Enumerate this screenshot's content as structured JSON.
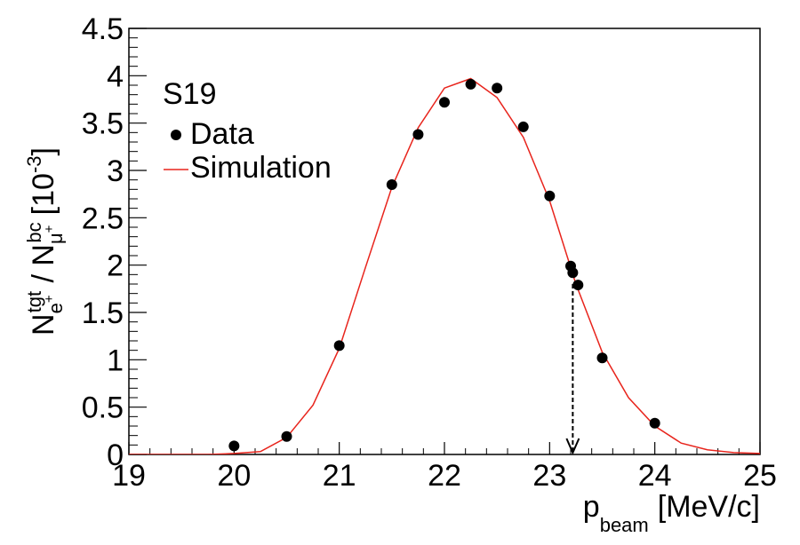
{
  "chart_data": {
    "type": "scatter",
    "title": "",
    "legend_title": "S19",
    "legend_position": "top-left",
    "xlabel": {
      "main": "p",
      "sub": "beam",
      "unit": "[MeV/c]"
    },
    "ylabel": {
      "n1": "N",
      "n1_sup": "tgt",
      "n1_sub": "e",
      "slash": " / ",
      "n2": "N",
      "n2_sup": "bc",
      "n2_sub": "μ",
      "unit_open": "[10",
      "unit_exp": "-3",
      "unit_close": "]"
    },
    "xlim": [
      19,
      25
    ],
    "ylim": [
      0,
      4.5
    ],
    "x_ticks": [
      19,
      20,
      21,
      22,
      23,
      24,
      25
    ],
    "y_ticks": [
      0,
      0.5,
      1,
      1.5,
      2,
      2.5,
      3,
      3.5,
      4,
      4.5
    ],
    "x_tick_labels": [
      "19",
      "20",
      "21",
      "22",
      "23",
      "24",
      "25"
    ],
    "y_tick_labels": [
      "0",
      "0.5",
      "1",
      "1.5",
      "2",
      "2.5",
      "3",
      "3.5",
      "4",
      "4.5"
    ],
    "series": [
      {
        "name": "Data",
        "kind": "points",
        "color": "#000000",
        "x": [
          20.0,
          20.5,
          21.0,
          21.5,
          21.75,
          22.0,
          22.25,
          22.5,
          22.75,
          23.0,
          23.2,
          23.22,
          23.27,
          23.5,
          24.0
        ],
        "y": [
          0.09,
          0.19,
          1.15,
          2.85,
          3.38,
          3.72,
          3.91,
          3.87,
          3.46,
          2.73,
          1.99,
          1.92,
          1.79,
          1.02,
          0.33
        ]
      },
      {
        "name": "Simulation",
        "kind": "line",
        "color": "#e8241c",
        "x": [
          19.0,
          19.25,
          19.5,
          19.75,
          20.0,
          20.25,
          20.5,
          20.75,
          21.0,
          21.25,
          21.5,
          21.75,
          22.0,
          22.25,
          22.5,
          22.75,
          23.0,
          23.25,
          23.5,
          23.75,
          24.0,
          24.25,
          24.5,
          24.75,
          25.0
        ],
        "y": [
          0,
          0,
          0,
          0,
          0.01,
          0.03,
          0.18,
          0.52,
          1.12,
          1.98,
          2.82,
          3.45,
          3.87,
          3.97,
          3.77,
          3.35,
          2.68,
          1.8,
          1.08,
          0.6,
          0.3,
          0.12,
          0.05,
          0.02,
          0.01
        ]
      }
    ],
    "annotations": [
      {
        "type": "arrow",
        "x": 23.22,
        "y_from": 1.8,
        "y_to": 0,
        "style": "dashed"
      }
    ]
  }
}
